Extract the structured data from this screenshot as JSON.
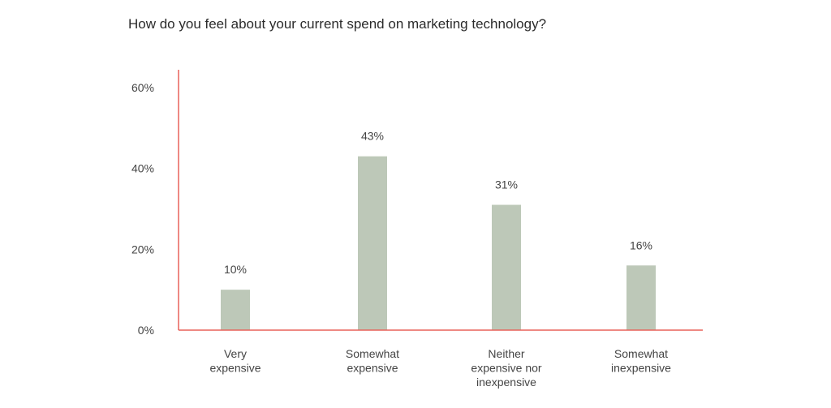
{
  "title": "How do you feel about your current spend on marketing technology?",
  "colors": {
    "bar": "#bdc8b8",
    "axis": "#e8625a",
    "text": "#444444"
  },
  "chart_data": {
    "type": "bar",
    "title": "How do you feel about your current spend on marketing technology?",
    "categories": [
      [
        "Very",
        "expensive"
      ],
      [
        "Somewhat",
        "expensive"
      ],
      [
        "Neither",
        "expensive nor",
        "inexpensive"
      ],
      [
        "Somewhat",
        "inexpensive"
      ]
    ],
    "values": [
      10,
      43,
      31,
      16
    ],
    "data_labels": [
      "10%",
      "43%",
      "31%",
      "16%"
    ],
    "yticks": [
      0,
      20,
      40,
      60
    ],
    "ytick_labels": [
      "0%",
      "20%",
      "40%",
      "60%"
    ],
    "ylim": [
      0,
      60
    ],
    "xlabel": "",
    "ylabel": "",
    "grid": false,
    "legend": "none"
  }
}
